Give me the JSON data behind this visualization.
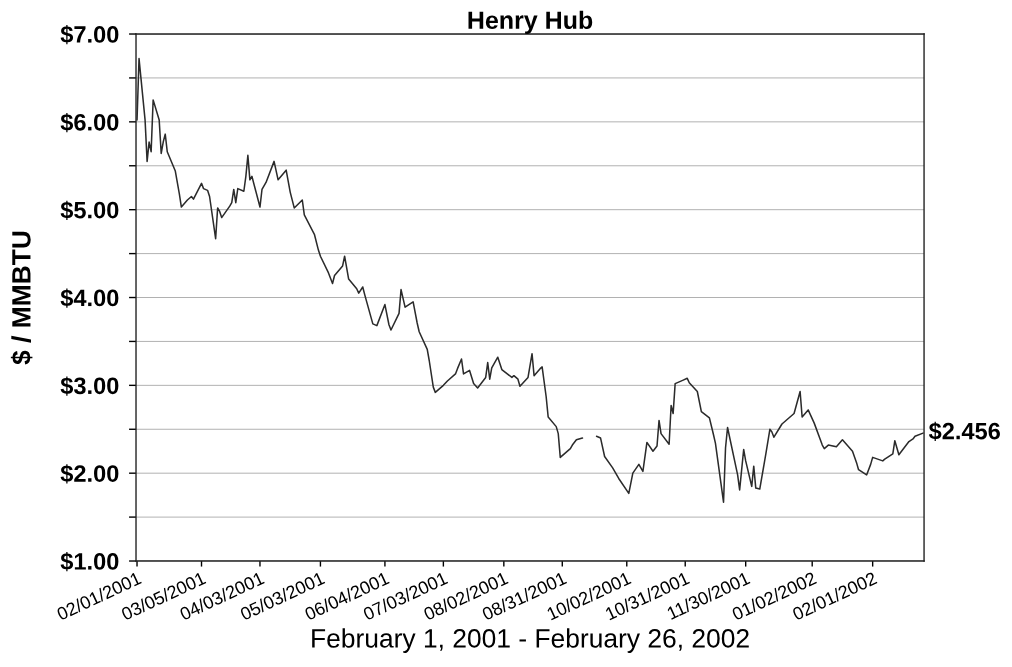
{
  "chart_data": {
    "type": "line",
    "title": "Henry Hub",
    "xlabel": "February 1, 2001 - February 26, 2002",
    "ylabel": "$ / MMBTU",
    "x": [
      "2001-02-01",
      "2001-02-02",
      "2001-02-05",
      "2001-02-06",
      "2001-02-07",
      "2001-02-08",
      "2001-02-09",
      "2001-02-12",
      "2001-02-13",
      "2001-02-14",
      "2001-02-15",
      "2001-02-16",
      "2001-02-20",
      "2001-02-22",
      "2001-02-23",
      "2001-02-26",
      "2001-02-28",
      "2001-03-01",
      "2001-03-05",
      "2001-03-06",
      "2001-03-08",
      "2001-03-09",
      "2001-03-12",
      "2001-03-13",
      "2001-03-14",
      "2001-03-15",
      "2001-03-19",
      "2001-03-20",
      "2001-03-21",
      "2001-03-22",
      "2001-03-23",
      "2001-03-26",
      "2001-03-27",
      "2001-03-28",
      "2001-03-29",
      "2001-03-30",
      "2001-04-03",
      "2001-04-04",
      "2001-04-06",
      "2001-04-10",
      "2001-04-12",
      "2001-04-16",
      "2001-04-18",
      "2001-04-20",
      "2001-04-24",
      "2001-04-25",
      "2001-04-30",
      "2001-05-02",
      "2001-05-03",
      "2001-05-07",
      "2001-05-09",
      "2001-05-10",
      "2001-05-14",
      "2001-05-15",
      "2001-05-17",
      "2001-05-21",
      "2001-05-22",
      "2001-05-24",
      "2001-05-25",
      "2001-05-29",
      "2001-05-31",
      "2001-06-04",
      "2001-06-06",
      "2001-06-07",
      "2001-06-11",
      "2001-06-12",
      "2001-06-14",
      "2001-06-18",
      "2001-06-20",
      "2001-06-21",
      "2001-06-25",
      "2001-06-26",
      "2001-06-28",
      "2001-06-29",
      "2001-07-03",
      "2001-07-05",
      "2001-07-09",
      "2001-07-10",
      "2001-07-12",
      "2001-07-13",
      "2001-07-16",
      "2001-07-18",
      "2001-07-20",
      "2001-07-24",
      "2001-07-25",
      "2001-07-26",
      "2001-07-27",
      "2001-07-30",
      "2001-08-01",
      "2001-08-06",
      "2001-08-07",
      "2001-08-09",
      "2001-08-10",
      "2001-08-14",
      "2001-08-16",
      "2001-08-17",
      "2001-08-20",
      "2001-08-21",
      "2001-08-23",
      "2001-08-24",
      "2001-08-28",
      "2001-08-29",
      "2001-08-30",
      "2001-09-04",
      "2001-09-05",
      "2001-09-07",
      "2001-09-10",
      "2001-09-12",
      "2001-09-17",
      "2001-09-19",
      "2001-09-21",
      "2001-09-25",
      "2001-09-28",
      "2001-10-03",
      "2001-10-05",
      "2001-10-08",
      "2001-10-10",
      "2001-10-12",
      "2001-10-15",
      "2001-10-17",
      "2001-10-18",
      "2001-10-19",
      "2001-10-23",
      "2001-10-24",
      "2001-10-25",
      "2001-10-26",
      "2001-10-30",
      "2001-11-01",
      "2001-11-02",
      "2001-11-06",
      "2001-11-08",
      "2001-11-12",
      "2001-11-14",
      "2001-11-15",
      "2001-11-19",
      "2001-11-20",
      "2001-11-21",
      "2001-11-26",
      "2001-11-27",
      "2001-11-29",
      "2001-11-30",
      "2001-12-03",
      "2001-12-04",
      "2001-12-05",
      "2001-12-07",
      "2001-12-10",
      "2001-12-12",
      "2001-12-13",
      "2001-12-14",
      "2001-12-18",
      "2001-12-20",
      "2001-12-24",
      "2001-12-27",
      "2001-12-28",
      "2001-12-31",
      "2002-01-03",
      "2002-01-07",
      "2002-01-08",
      "2002-01-10",
      "2002-01-14",
      "2002-01-17",
      "2002-01-22",
      "2002-01-24",
      "2002-01-25",
      "2002-01-29",
      "2002-01-31",
      "2002-02-01",
      "2002-02-06",
      "2002-02-07",
      "2002-02-11",
      "2002-02-12",
      "2002-02-14",
      "2002-02-19",
      "2002-02-21",
      "2002-02-22",
      "2002-02-26"
    ],
    "series": [
      {
        "color": "#2b2b2b",
        "values": [
          6.02,
          6.72,
          6.02,
          5.55,
          5.77,
          5.66,
          6.25,
          6.02,
          5.64,
          5.77,
          5.86,
          5.66,
          5.44,
          5.18,
          5.03,
          5.11,
          5.15,
          5.12,
          5.3,
          5.24,
          5.22,
          5.15,
          4.67,
          5.02,
          4.98,
          4.91,
          5.04,
          5.08,
          5.23,
          5.08,
          5.24,
          5.21,
          5.38,
          5.62,
          5.34,
          5.38,
          5.03,
          5.23,
          5.31,
          5.55,
          5.34,
          5.45,
          5.2,
          5.02,
          5.11,
          4.94,
          4.72,
          4.54,
          4.47,
          4.28,
          4.16,
          4.25,
          4.36,
          4.47,
          4.21,
          4.1,
          4.05,
          4.12,
          4.03,
          3.7,
          3.68,
          3.92,
          3.69,
          3.63,
          3.82,
          4.09,
          3.89,
          3.95,
          3.71,
          3.61,
          3.41,
          3.28,
          2.98,
          2.92,
          3.0,
          3.05,
          3.13,
          3.19,
          3.3,
          3.13,
          3.17,
          3.02,
          2.97,
          3.09,
          3.26,
          3.07,
          3.2,
          3.32,
          3.18,
          3.09,
          3.11,
          3.07,
          2.99,
          3.09,
          3.36,
          3.11,
          3.19,
          3.21,
          2.87,
          2.64,
          2.53,
          2.45,
          2.18,
          2.28,
          2.32,
          2.38,
          2.4,
          null,
          2.42,
          2.4,
          2.19,
          2.06,
          1.94,
          1.77,
          2.0,
          2.1,
          2.02,
          2.35,
          2.25,
          2.31,
          2.6,
          2.45,
          2.33,
          2.77,
          2.68,
          3.02,
          3.06,
          3.08,
          3.03,
          2.93,
          2.7,
          2.63,
          2.44,
          2.34,
          1.67,
          2.29,
          2.52,
          1.98,
          1.81,
          2.27,
          2.14,
          1.85,
          2.08,
          1.83,
          1.82,
          2.22,
          2.5,
          2.47,
          2.41,
          2.56,
          2.6,
          2.68,
          2.93,
          2.64,
          2.72,
          2.57,
          2.32,
          2.28,
          2.32,
          2.3,
          2.38,
          2.25,
          2.12,
          2.04,
          1.98,
          2.1,
          2.18,
          2.14,
          2.16,
          2.22,
          2.37,
          2.21,
          2.36,
          2.39,
          2.42,
          2.456
        ]
      }
    ],
    "xlim": [
      "2001-01-31T12:00",
      "2002-02-26T12:00"
    ],
    "xticks": [
      {
        "value": "2001-02-01",
        "label": "02/01/2001"
      },
      {
        "value": "2001-03-05",
        "label": "03/05/2001"
      },
      {
        "value": "2001-04-03",
        "label": "04/03/2001"
      },
      {
        "value": "2001-05-03",
        "label": "05/03/2001"
      },
      {
        "value": "2001-06-04",
        "label": "06/04/2001"
      },
      {
        "value": "2001-07-03",
        "label": "07/03/2001"
      },
      {
        "value": "2001-08-02",
        "label": "08/02/2001"
      },
      {
        "value": "2001-08-31",
        "label": "08/31/2001"
      },
      {
        "value": "2001-10-02",
        "label": "10/02/2001"
      },
      {
        "value": "2001-10-31",
        "label": "10/31/2001"
      },
      {
        "value": "2001-11-30",
        "label": "11/30/2001"
      },
      {
        "value": "2002-01-02",
        "label": "01/02/2002"
      },
      {
        "value": "2002-02-01",
        "label": "02/01/2002"
      }
    ],
    "ylim": [
      1,
      7
    ],
    "yticks": [
      {
        "value": 1,
        "label": "$1.00"
      },
      {
        "value": 1.5,
        "label": null
      },
      {
        "value": 2,
        "label": "$2.00"
      },
      {
        "value": 2.5,
        "label": null
      },
      {
        "value": 3,
        "label": "$3.00"
      },
      {
        "value": 3.5,
        "label": null
      },
      {
        "value": 4,
        "label": "$4.00"
      },
      {
        "value": 4.5,
        "label": null
      },
      {
        "value": 5,
        "label": "$5.00"
      },
      {
        "value": 5.5,
        "label": null
      },
      {
        "value": 6,
        "label": "$6.00"
      },
      {
        "value": 6.5,
        "label": null
      },
      {
        "value": 7,
        "label": "$7.00"
      }
    ],
    "grid": "y",
    "annotations": [
      {
        "text": "$2.456",
        "x": "2002-02-26",
        "y": 2.456
      }
    ]
  }
}
